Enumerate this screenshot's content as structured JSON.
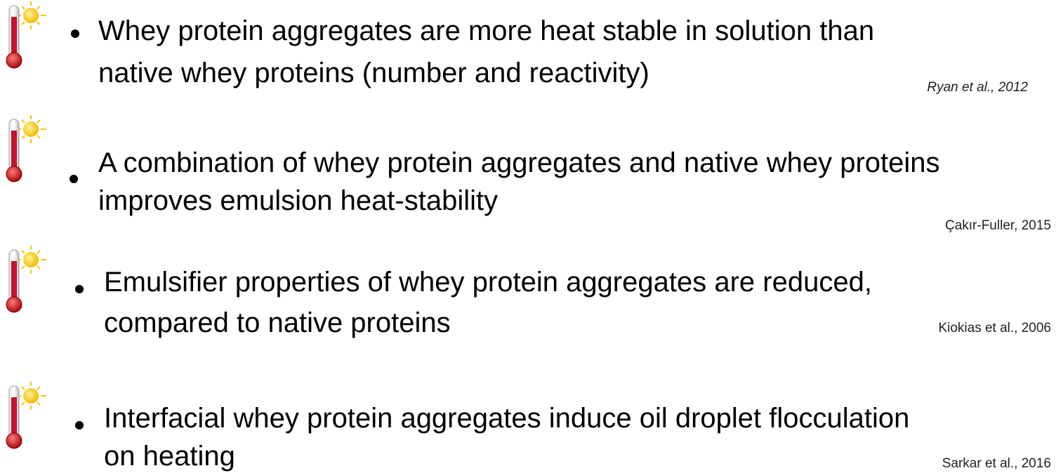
{
  "items": [
    {
      "lines": [
        "Whey protein aggregates are more heat stable in solution than",
        "native whey proteins (number and reactivity)"
      ],
      "citation": "Ryan et al., 2012"
    },
    {
      "lines": [
        "A combination of whey protein aggregates and native whey proteins",
        "improves emulsion heat-stability"
      ],
      "citation": "Çakır-Fuller, 2015"
    },
    {
      "lines": [
        "Emulsifier properties of whey protein aggregates are reduced,",
        "compared to native proteins"
      ],
      "citation": "Kiokias et al., 2006"
    },
    {
      "lines": [
        "Interfacial whey protein aggregates induce oil droplet flocculation",
        "on heating"
      ],
      "citation": "Sarkar et al., 2016"
    }
  ]
}
